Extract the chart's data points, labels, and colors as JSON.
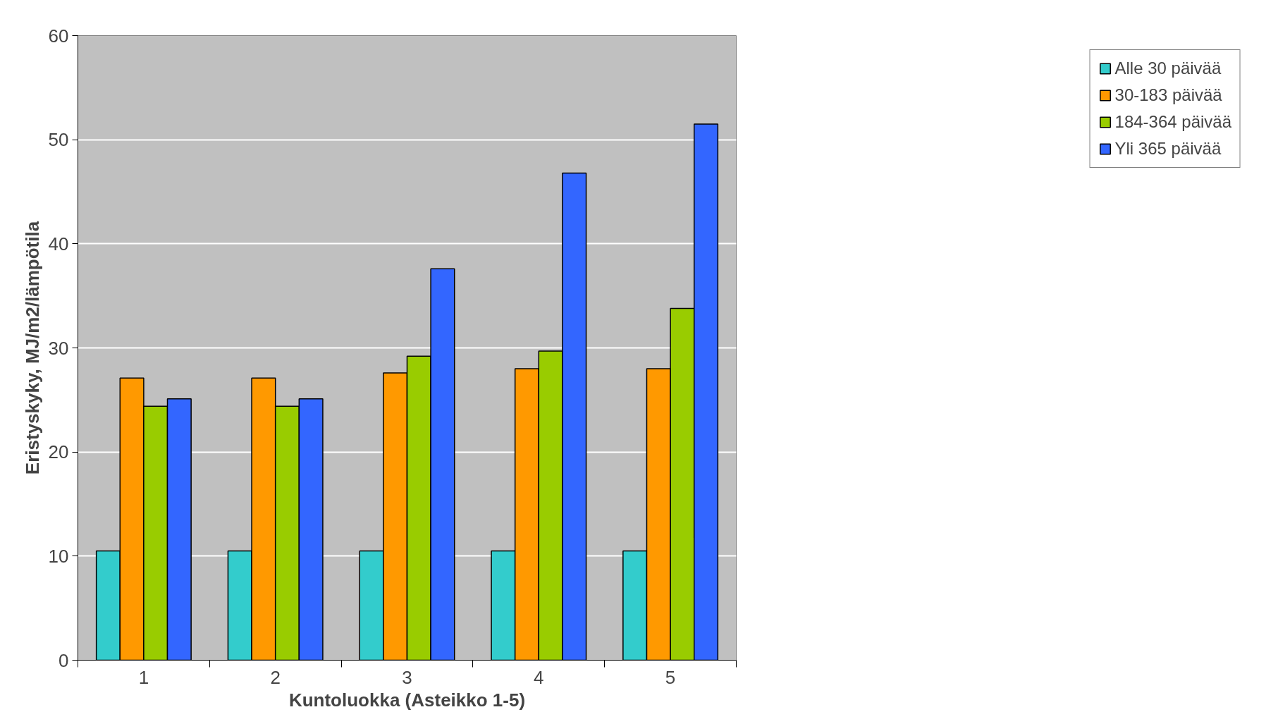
{
  "chart_data": {
    "type": "bar",
    "xlabel": "Kuntoluokka (Asteikko 1-5)",
    "ylabel": "Eristyskyky, MJ/m2/lämpötila",
    "categories": [
      "1",
      "2",
      "3",
      "4",
      "5"
    ],
    "series": [
      {
        "name": "Alle 30 päivää",
        "color": "#33cccc",
        "values": [
          10.5,
          10.5,
          10.5,
          10.5,
          10.5
        ]
      },
      {
        "name": "30-183 päivää",
        "color": "#ff9900",
        "values": [
          27.1,
          27.1,
          27.6,
          28.0,
          28.0
        ]
      },
      {
        "name": "184-364 päivää",
        "color": "#99cc00",
        "values": [
          24.4,
          24.4,
          29.2,
          29.7,
          33.8
        ]
      },
      {
        "name": "Yli 365 päivää",
        "color": "#3366ff",
        "values": [
          25.1,
          25.1,
          37.6,
          46.8,
          51.5
        ]
      }
    ],
    "ylim": [
      0,
      60
    ],
    "yticks": [
      0,
      10,
      20,
      30,
      40,
      50,
      60
    ],
    "grid": "y",
    "legend": "right"
  }
}
